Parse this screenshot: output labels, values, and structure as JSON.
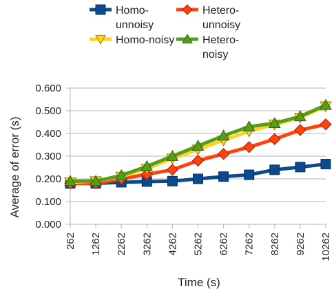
{
  "chart_data": {
    "type": "line",
    "xlabel": "Time (s)",
    "ylabel": "Average of error (s)",
    "categories": [
      "262",
      "1262",
      "2262",
      "3262",
      "4262",
      "5262",
      "6262",
      "7262",
      "8262",
      "9262",
      "10262"
    ],
    "y_ticks": [
      "0.000",
      "0.100",
      "0.200",
      "0.300",
      "0.400",
      "0.500",
      "0.600"
    ],
    "ylim": [
      0,
      0.6
    ],
    "grid": "horizontal",
    "legend_position": "top",
    "series": [
      {
        "name": "Homo-\nunnoisy",
        "color": "#0b4a8b",
        "marker": "square",
        "values": [
          0.18,
          0.18,
          0.185,
          0.188,
          0.19,
          0.2,
          0.21,
          0.218,
          0.24,
          0.252,
          0.265
        ]
      },
      {
        "name": "Hetero-\nunnoisy",
        "color": "#ff420e",
        "marker": "diamond",
        "values": [
          0.18,
          0.18,
          0.2,
          0.22,
          0.24,
          0.28,
          0.31,
          0.34,
          0.375,
          0.415,
          0.44
        ]
      },
      {
        "name": "Homo-noisy",
        "color": "#ffd320",
        "marker": "triangle-down",
        "values": [
          0.185,
          0.19,
          0.21,
          0.245,
          0.29,
          0.33,
          0.37,
          0.41,
          0.44,
          0.47,
          0.52
        ]
      },
      {
        "name": "Hetero-\nnoisy",
        "color": "#579d1c",
        "marker": "triangle-up",
        "values": [
          0.19,
          0.19,
          0.215,
          0.255,
          0.3,
          0.345,
          0.39,
          0.43,
          0.445,
          0.475,
          0.525
        ]
      }
    ]
  }
}
